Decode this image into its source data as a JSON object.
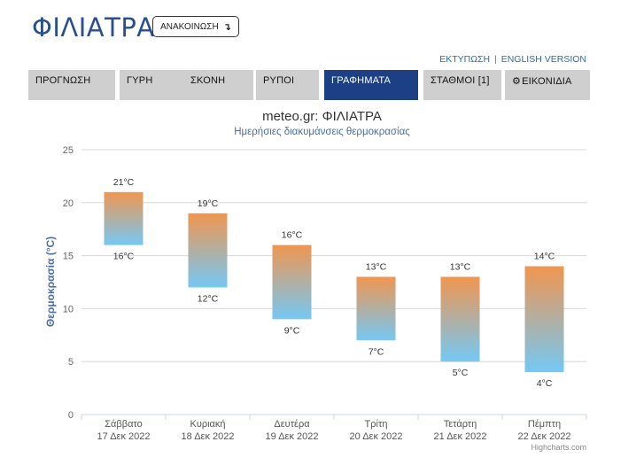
{
  "header": {
    "city": "ΦΙΛΙΑΤΡΑ",
    "announcements_label": "ΑΝΑΚΟΙΝΩΣΗ",
    "announcements_icon": "download-arrow-icon"
  },
  "toplinks": {
    "print": "ΕΚΤΥΠΩΣΗ",
    "separator": "|",
    "english": "ENGLISH VERSION"
  },
  "tabs": [
    {
      "label": "ΠΡΟΓΝΩΣΗ",
      "active": false
    },
    {
      "label": "ΓΥΡΗ",
      "active": false
    },
    {
      "label": "ΣΚΟΝΗ",
      "active": false
    },
    {
      "label": "ΡΥΠΟΙ",
      "active": false
    },
    {
      "label": "ΓΡΑΦΗΜΑΤΑ",
      "active": true
    },
    {
      "label": "ΣΤΑΘΜΟΙ [1]",
      "active": false
    },
    {
      "label": "ΕΙΚΟΝΙΔΙΑ",
      "active": false,
      "icon": "gear-icon"
    }
  ],
  "colors": {
    "brand": "#2a4e92",
    "tab_active": "#1c3f86",
    "tab_inactive": "#cfcfcf",
    "bar_high": "#f0964f",
    "bar_low": "#74c8f4"
  },
  "chart_data": {
    "type": "bar",
    "subtype": "columnrange",
    "title": "meteo.gr: ΦΙΛΙΑΤΡΑ",
    "subtitle": "Ημερήσιες διακυμάνσεις θερμοκρασίας",
    "ylabel": "Θερμοκρασία (°C)",
    "xlabel": "",
    "ylim": [
      0,
      25
    ],
    "yticks": [
      0,
      5,
      10,
      15,
      20,
      25
    ],
    "grid": true,
    "legend": "none",
    "unit": "°C",
    "categories": [
      [
        "Σάββατο",
        "17 Δεκ 2022"
      ],
      [
        "Κυριακή",
        "18 Δεκ 2022"
      ],
      [
        "Δευτέρα",
        "19 Δεκ 2022"
      ],
      [
        "Τρίτη",
        "20 Δεκ 2022"
      ],
      [
        "Τετάρτη",
        "21 Δεκ 2022"
      ],
      [
        "Πέμπτη",
        "22 Δεκ 2022"
      ]
    ],
    "series": [
      {
        "name": "",
        "low": [
          16,
          12,
          9,
          7,
          5,
          4
        ],
        "high": [
          21,
          19,
          16,
          13,
          13,
          14
        ]
      }
    ],
    "credits": "Highcharts.com"
  }
}
